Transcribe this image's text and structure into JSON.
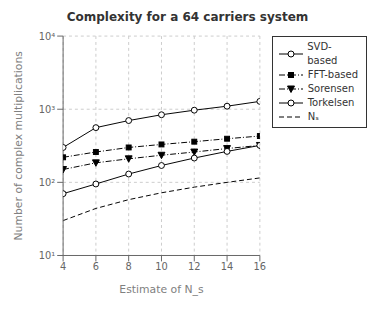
{
  "chart_data": {
    "type": "line",
    "title": "Complexity for a 64 carriers system",
    "x_label": "Estimate of N_s",
    "y_label": "Number of complex multiplications",
    "x": [
      4,
      6,
      8,
      10,
      12,
      14,
      16
    ],
    "series": [
      {
        "name": "SVD-based",
        "values": [
          300,
          560,
          700,
          840,
          970,
          1100,
          1280
        ],
        "marker": "circle_open",
        "line_style": "solid"
      },
      {
        "name": "FFT-based",
        "values": [
          220,
          260,
          300,
          330,
          360,
          395,
          430
        ],
        "marker": "square",
        "line_style": "dashdot"
      },
      {
        "name": "Sorensen",
        "values": [
          150,
          185,
          210,
          235,
          260,
          290,
          320
        ],
        "marker": "triangle_down",
        "line_style": "dashdot"
      },
      {
        "name": "Torkelsen",
        "values": [
          70,
          95,
          130,
          170,
          215,
          265,
          320
        ],
        "marker": "circle_open",
        "line_style": "solid"
      },
      {
        "name": "Nₛ",
        "values": [
          30,
          44,
          58,
          72,
          86,
          100,
          115
        ],
        "marker": "none",
        "line_style": "dashed"
      }
    ],
    "color": "black",
    "xlim": [
      4,
      16
    ],
    "xticks": [
      4,
      6,
      8,
      10,
      12,
      14,
      16
    ],
    "ylim": [
      10,
      10000
    ],
    "yticks": [
      {
        "value": 10,
        "label": "10¹"
      },
      {
        "value": 100,
        "label": "10²"
      },
      {
        "value": 1000,
        "label": "10³"
      },
      {
        "value": 10000,
        "label": "10⁴"
      }
    ],
    "log": "y",
    "grid": true,
    "legend": "upper right"
  }
}
